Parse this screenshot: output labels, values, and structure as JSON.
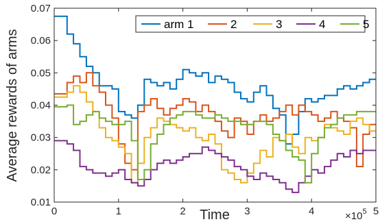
{
  "chart_data": {
    "type": "line",
    "step": true,
    "xlabel": "Time",
    "ylabel": "Average rewards of arms",
    "x_multiplier_label": "×10",
    "x_multiplier_exponent": "5",
    "xlim": [
      0,
      500000
    ],
    "ylim": [
      0.01,
      0.07
    ],
    "xticks": [
      0,
      100000,
      200000,
      300000,
      400000,
      500000
    ],
    "xtick_labels": [
      "0",
      "1",
      "2",
      "3",
      "4",
      "5"
    ],
    "yticks": [
      0.01,
      0.02,
      0.03,
      0.04,
      0.05,
      0.06,
      0.07
    ],
    "ytick_labels": [
      "0.01",
      "0.02",
      "0.03",
      "0.04",
      "0.05",
      "0.06",
      "0.07"
    ],
    "grid": false,
    "legend_placement": "top-right",
    "legend_layout": "horizontal",
    "x_step": 10000,
    "series": [
      {
        "name": "arm 1",
        "color": "#0072BD",
        "values": [
          0.0675,
          0.0675,
          0.062,
          0.059,
          0.055,
          0.052,
          0.05,
          0.046,
          0.046,
          0.045,
          0.038,
          0.037,
          0.036,
          0.04,
          0.048,
          0.047,
          0.046,
          0.047,
          0.045,
          0.048,
          0.051,
          0.05,
          0.049,
          0.05,
          0.047,
          0.049,
          0.048,
          0.047,
          0.044,
          0.042,
          0.041,
          0.044,
          0.046,
          0.043,
          0.039,
          0.037,
          0.028,
          0.031,
          0.038,
          0.042,
          0.041,
          0.042,
          0.043,
          0.043,
          0.045,
          0.046,
          0.045,
          0.046,
          0.047,
          0.048
        ]
      },
      {
        "name": "2",
        "color": "#D95319",
        "values": [
          0.0435,
          0.0435,
          0.047,
          0.049,
          0.047,
          0.05,
          0.046,
          0.044,
          0.04,
          0.036,
          0.028,
          0.022,
          0.02,
          0.038,
          0.04,
          0.042,
          0.039,
          0.037,
          0.039,
          0.04,
          0.042,
          0.041,
          0.038,
          0.04,
          0.038,
          0.035,
          0.032,
          0.03,
          0.036,
          0.035,
          0.031,
          0.035,
          0.037,
          0.035,
          0.036,
          0.038,
          0.04,
          0.037,
          0.04,
          0.038,
          0.037,
          0.035,
          0.036,
          0.038,
          0.036,
          0.035,
          0.033,
          0.021,
          0.031,
          0.034
        ]
      },
      {
        "name": "3",
        "color": "#EDB120",
        "values": [
          0.0425,
          0.0425,
          0.044,
          0.046,
          0.044,
          0.041,
          0.038,
          0.033,
          0.03,
          0.029,
          0.027,
          0.025,
          0.016,
          0.022,
          0.03,
          0.033,
          0.036,
          0.035,
          0.034,
          0.033,
          0.032,
          0.033,
          0.03,
          0.029,
          0.031,
          0.028,
          0.02,
          0.019,
          0.017,
          0.016,
          0.019,
          0.022,
          0.026,
          0.024,
          0.03,
          0.029,
          0.031,
          0.027,
          0.025,
          0.03,
          0.029,
          0.03,
          0.034,
          0.033,
          0.032,
          0.031,
          0.035,
          0.036,
          0.034,
          0.032
        ]
      },
      {
        "name": "4",
        "color": "#7E2F8E",
        "values": [
          0.029,
          0.029,
          0.028,
          0.026,
          0.021,
          0.02,
          0.019,
          0.019,
          0.018,
          0.019,
          0.02,
          0.017,
          0.016,
          0.015,
          0.017,
          0.02,
          0.022,
          0.023,
          0.022,
          0.023,
          0.024,
          0.025,
          0.025,
          0.027,
          0.026,
          0.025,
          0.024,
          0.023,
          0.021,
          0.02,
          0.018,
          0.017,
          0.019,
          0.018,
          0.017,
          0.016,
          0.014,
          0.013,
          0.016,
          0.018,
          0.02,
          0.019,
          0.021,
          0.023,
          0.025,
          0.024,
          0.026,
          0.025,
          0.026,
          0.026
        ]
      },
      {
        "name": "5",
        "color": "#77AC30",
        "values": [
          0.0395,
          0.0395,
          0.04,
          0.034,
          0.035,
          0.037,
          0.038,
          0.036,
          0.035,
          0.034,
          0.034,
          0.035,
          0.029,
          0.017,
          0.02,
          0.028,
          0.031,
          0.034,
          0.036,
          0.037,
          0.038,
          0.038,
          0.037,
          0.036,
          0.036,
          0.037,
          0.036,
          0.035,
          0.035,
          0.034,
          0.034,
          0.035,
          0.035,
          0.034,
          0.031,
          0.029,
          0.026,
          0.024,
          0.023,
          0.016,
          0.025,
          0.03,
          0.033,
          0.034,
          0.036,
          0.037,
          0.037,
          0.038,
          0.038,
          0.038
        ]
      }
    ]
  }
}
